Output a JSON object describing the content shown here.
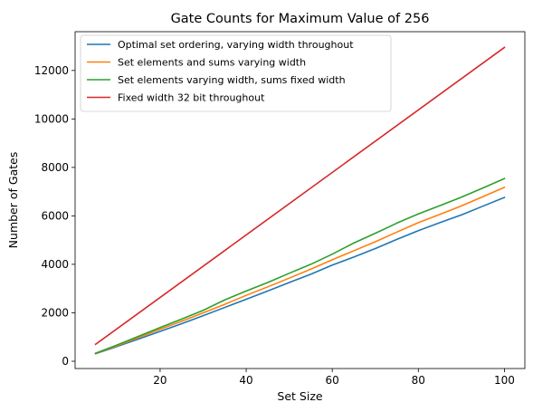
{
  "chart_data": {
    "type": "line",
    "title": "Gate Counts for Maximum Value of 256",
    "xlabel": "Set Size",
    "ylabel": "Number of Gates",
    "xlim": [
      0.25,
      104.75
    ],
    "ylim": [
      -300,
      13600
    ],
    "xticks": [
      20,
      40,
      60,
      80,
      100
    ],
    "yticks": [
      0,
      2000,
      4000,
      6000,
      8000,
      10000,
      12000
    ],
    "legend_position": "top-left",
    "grid": false,
    "series": [
      {
        "name": "Optimal set ordering, varying width throughout",
        "color": "#1f77b4",
        "x": [
          5,
          10,
          15,
          20,
          25,
          30,
          35,
          40,
          45,
          50,
          55,
          60,
          65,
          70,
          75,
          80,
          85,
          90,
          95,
          100
        ],
        "y": [
          310,
          610,
          920,
          1230,
          1550,
          1880,
          2220,
          2560,
          2900,
          3250,
          3590,
          3970,
          4300,
          4650,
          5030,
          5390,
          5720,
          6040,
          6400,
          6760
        ]
      },
      {
        "name": "Set elements and sums varying width",
        "color": "#ff7f0e",
        "x": [
          5,
          10,
          15,
          20,
          25,
          30,
          35,
          40,
          45,
          50,
          55,
          60,
          65,
          70,
          75,
          80,
          85,
          90,
          95,
          100
        ],
        "y": [
          320,
          640,
          980,
          1320,
          1650,
          2000,
          2350,
          2720,
          3070,
          3430,
          3800,
          4190,
          4560,
          4930,
          5330,
          5720,
          6060,
          6410,
          6790,
          7180
        ]
      },
      {
        "name": "Set elements varying width, sums fixed width",
        "color": "#2ca02c",
        "x": [
          5,
          10,
          15,
          20,
          25,
          30,
          35,
          40,
          45,
          50,
          55,
          60,
          65,
          70,
          75,
          80,
          85,
          90,
          95,
          100
        ],
        "y": [
          330,
          670,
          1030,
          1390,
          1740,
          2100,
          2530,
          2900,
          3250,
          3630,
          4000,
          4420,
          4880,
          5280,
          5700,
          6080,
          6420,
          6770,
          7150,
          7540
        ]
      },
      {
        "name": "Fixed width 32 bit throughout",
        "color": "#d62728",
        "x": [
          5,
          100
        ],
        "y": [
          700,
          12950
        ]
      }
    ]
  }
}
